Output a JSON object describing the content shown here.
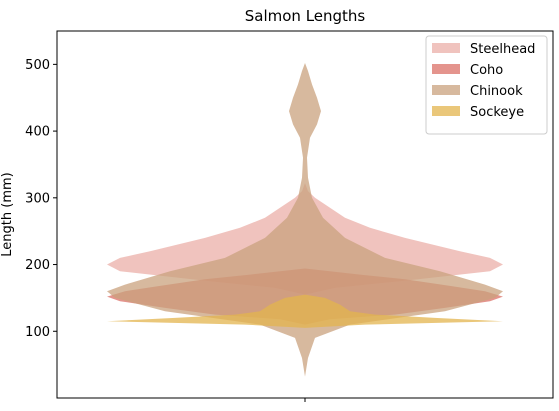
{
  "chart_data": {
    "type": "violin",
    "title": "Salmon Lengths",
    "xlabel": "",
    "ylabel": "Length (mm)",
    "ylim": [
      0,
      550
    ],
    "yticks": [
      100,
      200,
      300,
      400,
      500
    ],
    "grid": false,
    "legend_position": "top-right",
    "series": [
      {
        "name": "Steelhead",
        "color": "#e8a39b",
        "opacity": 0.65,
        "profile": [
          [
            155,
            0
          ],
          [
            165,
            30
          ],
          [
            175,
            95
          ],
          [
            190,
            185
          ],
          [
            200,
            198
          ],
          [
            210,
            185
          ],
          [
            220,
            155
          ],
          [
            240,
            100
          ],
          [
            255,
            65
          ],
          [
            270,
            40
          ],
          [
            285,
            25
          ],
          [
            300,
            10
          ],
          [
            310,
            3
          ],
          [
            322,
            0
          ]
        ]
      },
      {
        "name": "Coho",
        "color": "#d9665d",
        "opacity": 0.7,
        "profile": [
          [
            110,
            0
          ],
          [
            118,
            25
          ],
          [
            125,
            90
          ],
          [
            135,
            140
          ],
          [
            145,
            185
          ],
          [
            152,
            198
          ],
          [
            160,
            180
          ],
          [
            168,
            145
          ],
          [
            178,
            100
          ],
          [
            185,
            55
          ],
          [
            190,
            25
          ],
          [
            194,
            0
          ]
        ]
      },
      {
        "name": "Chinook",
        "color": "#c9a27e",
        "opacity": 0.75,
        "profile": [
          [
            32,
            0
          ],
          [
            60,
            3
          ],
          [
            90,
            10
          ],
          [
            110,
            45
          ],
          [
            130,
            140
          ],
          [
            150,
            190
          ],
          [
            160,
            198
          ],
          [
            170,
            180
          ],
          [
            190,
            135
          ],
          [
            210,
            80
          ],
          [
            240,
            40
          ],
          [
            270,
            18
          ],
          [
            300,
            7
          ],
          [
            330,
            3
          ],
          [
            360,
            2
          ],
          [
            390,
            5
          ],
          [
            410,
            12
          ],
          [
            430,
            16
          ],
          [
            450,
            12
          ],
          [
            470,
            7
          ],
          [
            490,
            3
          ],
          [
            502,
            0
          ]
        ]
      },
      {
        "name": "Sockeye",
        "color": "#e3b44d",
        "opacity": 0.75,
        "profile": [
          [
            105,
            0
          ],
          [
            110,
            60
          ],
          [
            115,
            198
          ],
          [
            120,
            130
          ],
          [
            125,
            70
          ],
          [
            130,
            45
          ],
          [
            140,
            35
          ],
          [
            150,
            20
          ],
          [
            155,
            0
          ]
        ]
      }
    ]
  }
}
